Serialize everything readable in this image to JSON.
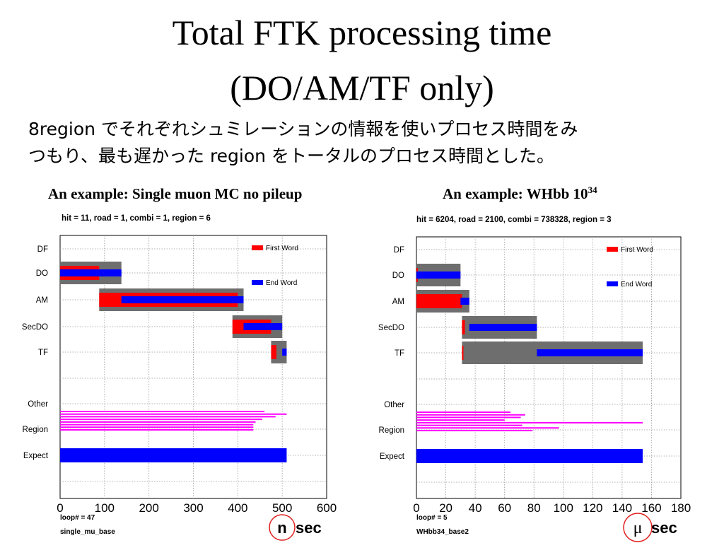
{
  "slide": {
    "title_line1": "Total FTK processing time",
    "title_line2": "(DO/AM/TF only)",
    "subtitle_line1": "8region でそれぞれシュミレーションの情報を使いプロセス時間をみ",
    "subtitle_line2": "つもり、最も遅かった region をトータルのプロセス時間とした。"
  },
  "chart_data": [
    {
      "type": "bar",
      "title": "An example: Single muon MC no pileup",
      "stats": "hit = 11,  road = 1, combi = 1,  region = 6",
      "rows": [
        "DF",
        "DO",
        "AM",
        "SecDO",
        "TF",
        "",
        "Other",
        "Region",
        "Expect",
        ""
      ],
      "xlim": [
        0,
        600
      ],
      "xticks": [
        0,
        100,
        200,
        300,
        400,
        500,
        600
      ],
      "tick_labels": [
        "0",
        "100",
        "200",
        "300",
        "400",
        "500",
        "600"
      ],
      "unit_letter": "n",
      "unit_suffix": "sec",
      "legend": [
        "First Word",
        "End  Word"
      ],
      "footer": [
        "loop# = 47",
        "single_mu_base"
      ],
      "stages": [
        {
          "row": "DO",
          "gray": [
            0,
            138
          ],
          "red": [
            0,
            88
          ],
          "blue": [
            0,
            138
          ]
        },
        {
          "row": "AM",
          "gray": [
            88,
            413
          ],
          "red": [
            88,
            400
          ],
          "blue": [
            138,
            413
          ]
        },
        {
          "row": "SecDO",
          "gray": [
            388,
            500
          ],
          "red": [
            388,
            475
          ],
          "blue": [
            413,
            500
          ]
        },
        {
          "row": "TF",
          "gray": [
            475,
            510
          ],
          "red": [
            475,
            487
          ],
          "blue": [
            500,
            510
          ]
        }
      ],
      "region_lines": [
        460,
        510,
        485,
        455,
        440,
        435,
        435,
        435
      ],
      "expect": 510
    },
    {
      "type": "bar",
      "title": "An example: WHbb 10",
      "title_sup": "34",
      "stats": "hit = 6204,  road = 2100, combi = 738328,  region = 3",
      "rows": [
        "DF",
        "DO",
        "AM",
        "SecDO",
        "TF",
        "",
        "Other",
        "Region",
        "Expect",
        ""
      ],
      "xlim": [
        0,
        180
      ],
      "xticks": [
        0,
        20,
        40,
        60,
        80,
        100,
        120,
        140,
        160,
        180
      ],
      "tick_labels": [
        "0",
        "20",
        "40",
        "60",
        "80",
        "100",
        "120",
        "140",
        "160",
        "180"
      ],
      "unit_letter": "μ",
      "unit_suffix": "sec",
      "legend": [
        "First Word",
        "End  Word"
      ],
      "footer": [
        "loop# = 5",
        "WHbb34_base2"
      ],
      "stages": [
        {
          "row": "DO",
          "gray": [
            0,
            30
          ],
          "red": [
            0,
            1
          ],
          "blue": [
            0,
            30
          ]
        },
        {
          "row": "AM",
          "gray": [
            0,
            36
          ],
          "red": [
            0,
            31
          ],
          "blue": [
            30,
            36
          ]
        },
        {
          "row": "SecDO",
          "gray": [
            31,
            82
          ],
          "red": [
            31,
            33
          ],
          "blue": [
            36,
            82
          ]
        },
        {
          "row": "TF",
          "gray": [
            31,
            154
          ],
          "red": [
            31,
            32
          ],
          "blue": [
            82,
            154
          ]
        }
      ],
      "region_lines": [
        64,
        74,
        71,
        60,
        154,
        72,
        97,
        79
      ],
      "expect": 154
    }
  ]
}
